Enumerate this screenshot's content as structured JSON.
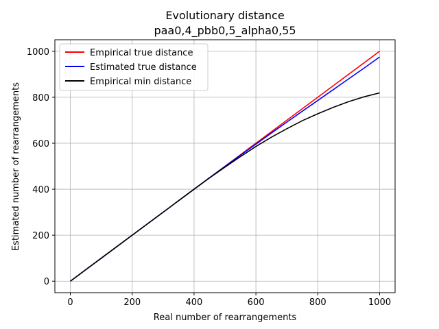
{
  "chart_data": {
    "type": "line",
    "title": "Evolutionary distance",
    "subtitle": "paa0,4_pbb0,5_alpha0,55",
    "xlabel": "Real number of rearrangements",
    "ylabel": "Estimated number of rearrangements",
    "xlim": [
      -50,
      1050
    ],
    "ylim": [
      -50,
      1050
    ],
    "xticks": [
      0,
      200,
      400,
      600,
      800,
      1000
    ],
    "yticks": [
      0,
      200,
      400,
      600,
      800,
      1000
    ],
    "grid": true,
    "legend_position": "top-left",
    "x": [
      0,
      100,
      200,
      300,
      400,
      450,
      500,
      550,
      600,
      650,
      700,
      750,
      800,
      850,
      900,
      950,
      1000
    ],
    "series": [
      {
        "name": "Empirical true distance",
        "color": "#ff0000",
        "values": [
          0,
          100,
          200,
          300,
          400,
          450,
          500,
          550,
          600,
          650,
          700,
          750,
          800,
          850,
          900,
          950,
          1000
        ]
      },
      {
        "name": "Estimated true distance",
        "color": "#0000ff",
        "values": [
          0,
          100,
          200,
          300,
          400,
          450,
          499,
          548,
          596,
          644,
          692,
          739,
          786,
          833,
          880,
          927,
          975
        ]
      },
      {
        "name": "Empirical min distance",
        "color": "#000000",
        "values": [
          0,
          100,
          200,
          300,
          400,
          449,
          496,
          542,
          586,
          626,
          663,
          698,
          728,
          756,
          781,
          802,
          819
        ]
      }
    ]
  }
}
